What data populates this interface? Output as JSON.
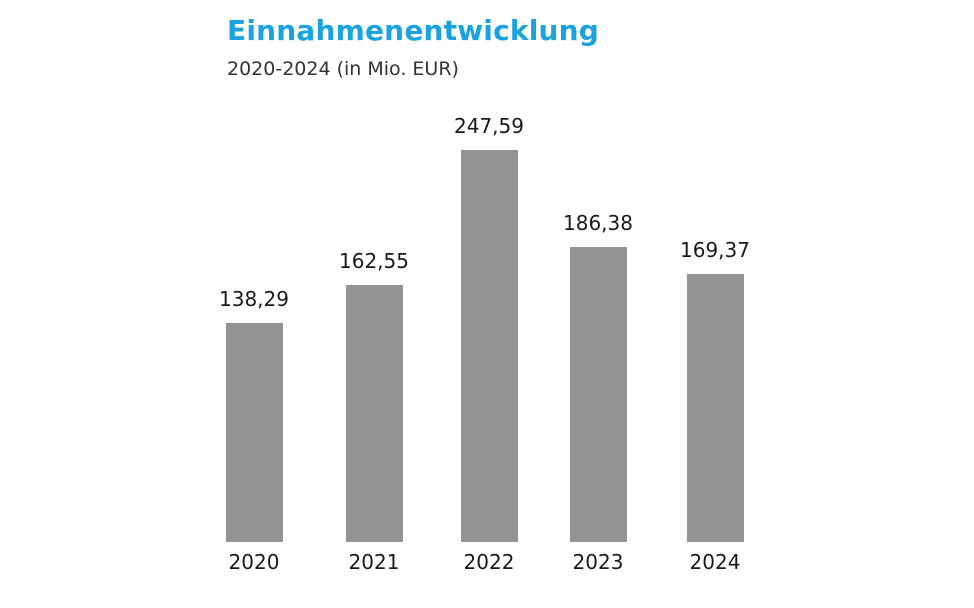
{
  "chart_data": {
    "type": "bar",
    "title": "Einnahmenentwicklung",
    "subtitle": "2020-2024 (in Mio. EUR)",
    "categories": [
      "2020",
      "2021",
      "2022",
      "2023",
      "2024"
    ],
    "values": [
      138.29,
      162.55,
      247.59,
      186.38,
      169.37
    ],
    "value_labels": [
      "138,29",
      "162,55",
      "247,59",
      "186,38",
      "169,37"
    ],
    "xlabel": "",
    "ylabel": "Mio. EUR",
    "ylim": [
      0,
      247.59
    ],
    "grid": false,
    "legend": null,
    "bar_color": "#929395",
    "title_color": "#1aa3df"
  }
}
